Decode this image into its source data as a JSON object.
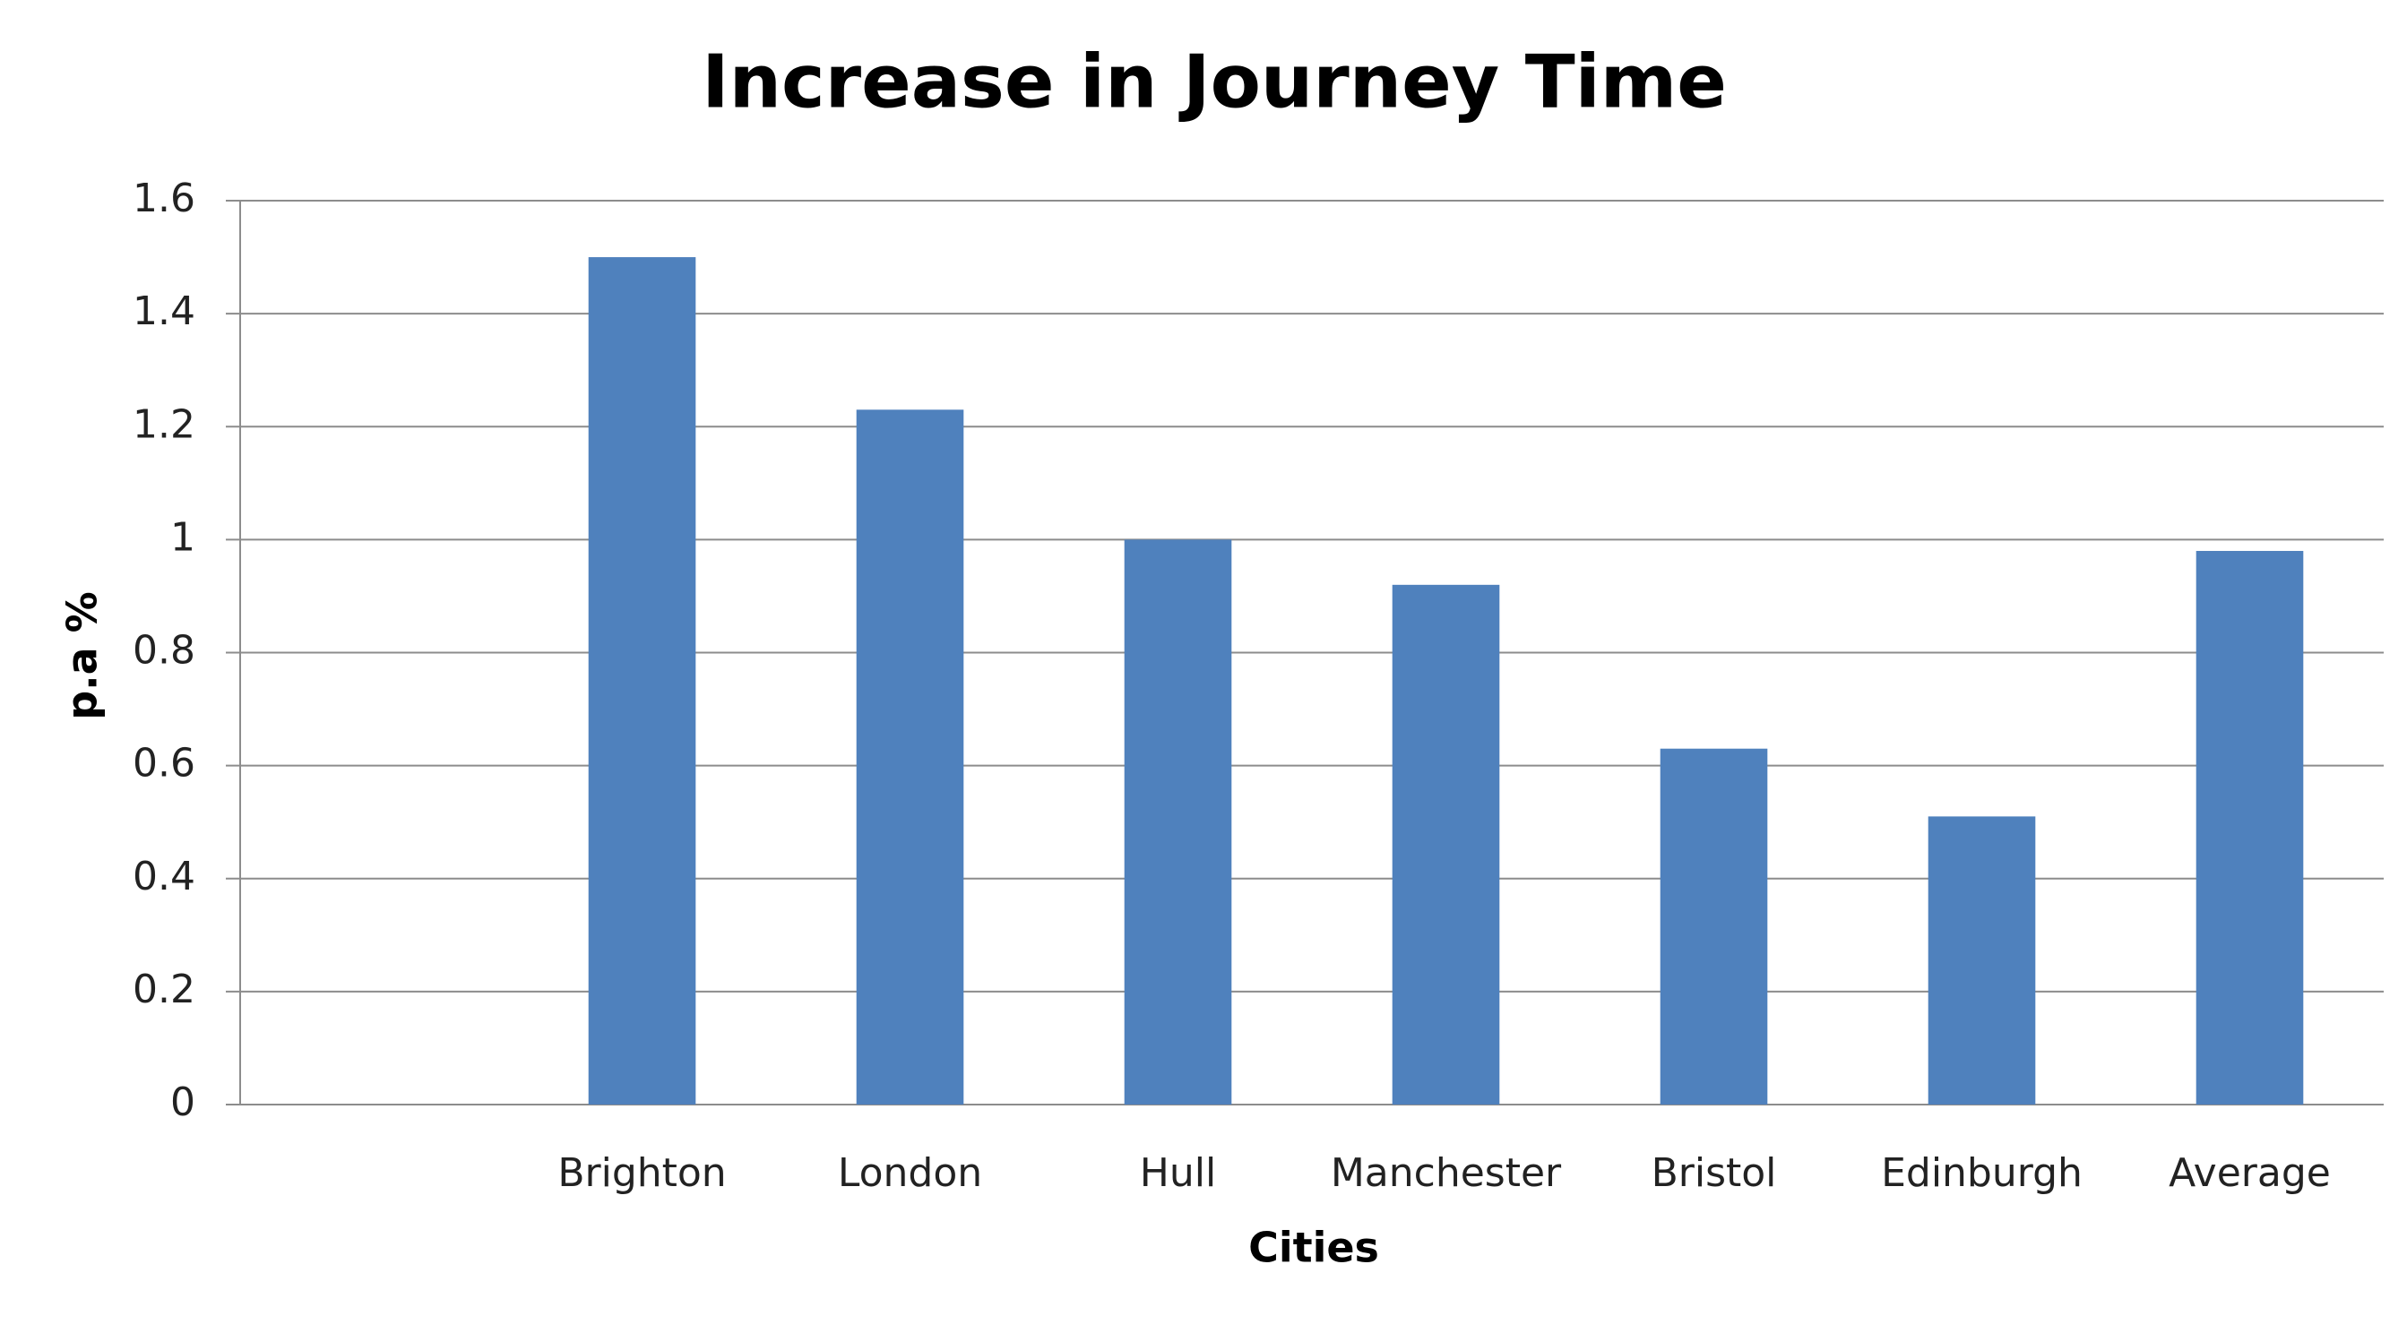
{
  "chart_data": {
    "type": "bar",
    "title": "Increase in Journey Time",
    "x_label": "Cities",
    "y_label": "p.a %",
    "categories": [
      null,
      "Brighton",
      "London",
      "Hull",
      "Manchester",
      "Bristol",
      "Edinburgh",
      "Average"
    ],
    "values": [
      null,
      1.5,
      1.23,
      1.0,
      0.92,
      0.63,
      0.51,
      0.98
    ],
    "color": "#4f81bd",
    "ylim": [
      0,
      1.6
    ],
    "yticks": [
      0,
      0.2,
      0.4,
      0.6,
      0.8,
      1,
      1.2,
      1.4,
      1.6
    ],
    "grid": true
  }
}
